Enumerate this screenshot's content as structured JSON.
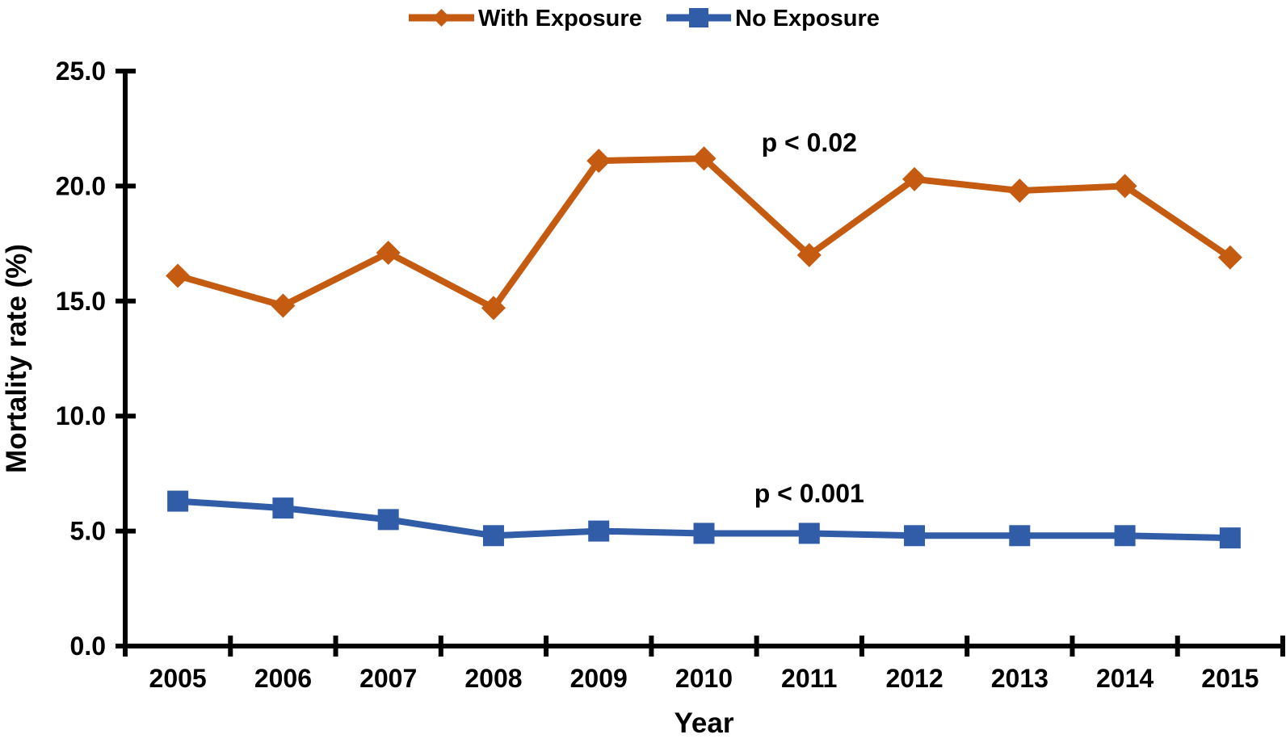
{
  "figure": {
    "background": "#ffffff"
  },
  "chart_data": {
    "type": "line",
    "title": "",
    "x": [
      "2005",
      "2006",
      "2007",
      "2008",
      "2009",
      "2010",
      "2011",
      "2012",
      "2013",
      "2014",
      "2015"
    ],
    "xlabel": "Year",
    "ylabel": "Mortality rate (%)",
    "ylim": [
      0,
      25
    ],
    "yticks": [
      0,
      5,
      10,
      15,
      20,
      25
    ],
    "ytick_labels": [
      "0.0",
      "5.0",
      "10.0",
      "15.0",
      "20.0",
      "25.0"
    ],
    "grid": false,
    "legend_position": "top-center",
    "axis_color": "#000000",
    "text_color": "#000000",
    "series": [
      {
        "name": "With Exposure",
        "color": "#C55A11",
        "marker": "diamond",
        "values": [
          16.1,
          14.8,
          17.1,
          14.7,
          21.1,
          21.2,
          17.0,
          20.3,
          19.8,
          20.0,
          16.9
        ]
      },
      {
        "name": "No Exposure",
        "color": "#305CA8",
        "marker": "square",
        "values": [
          6.3,
          6.0,
          5.5,
          4.8,
          5.0,
          4.9,
          4.9,
          4.8,
          4.8,
          4.8,
          4.7
        ]
      }
    ],
    "annotations": [
      {
        "text": "p < 0.02",
        "anchor_x": "2011",
        "y": 21.5
      },
      {
        "text": "p < 0.001",
        "anchor_x": "2011",
        "y": 6.25
      }
    ]
  }
}
